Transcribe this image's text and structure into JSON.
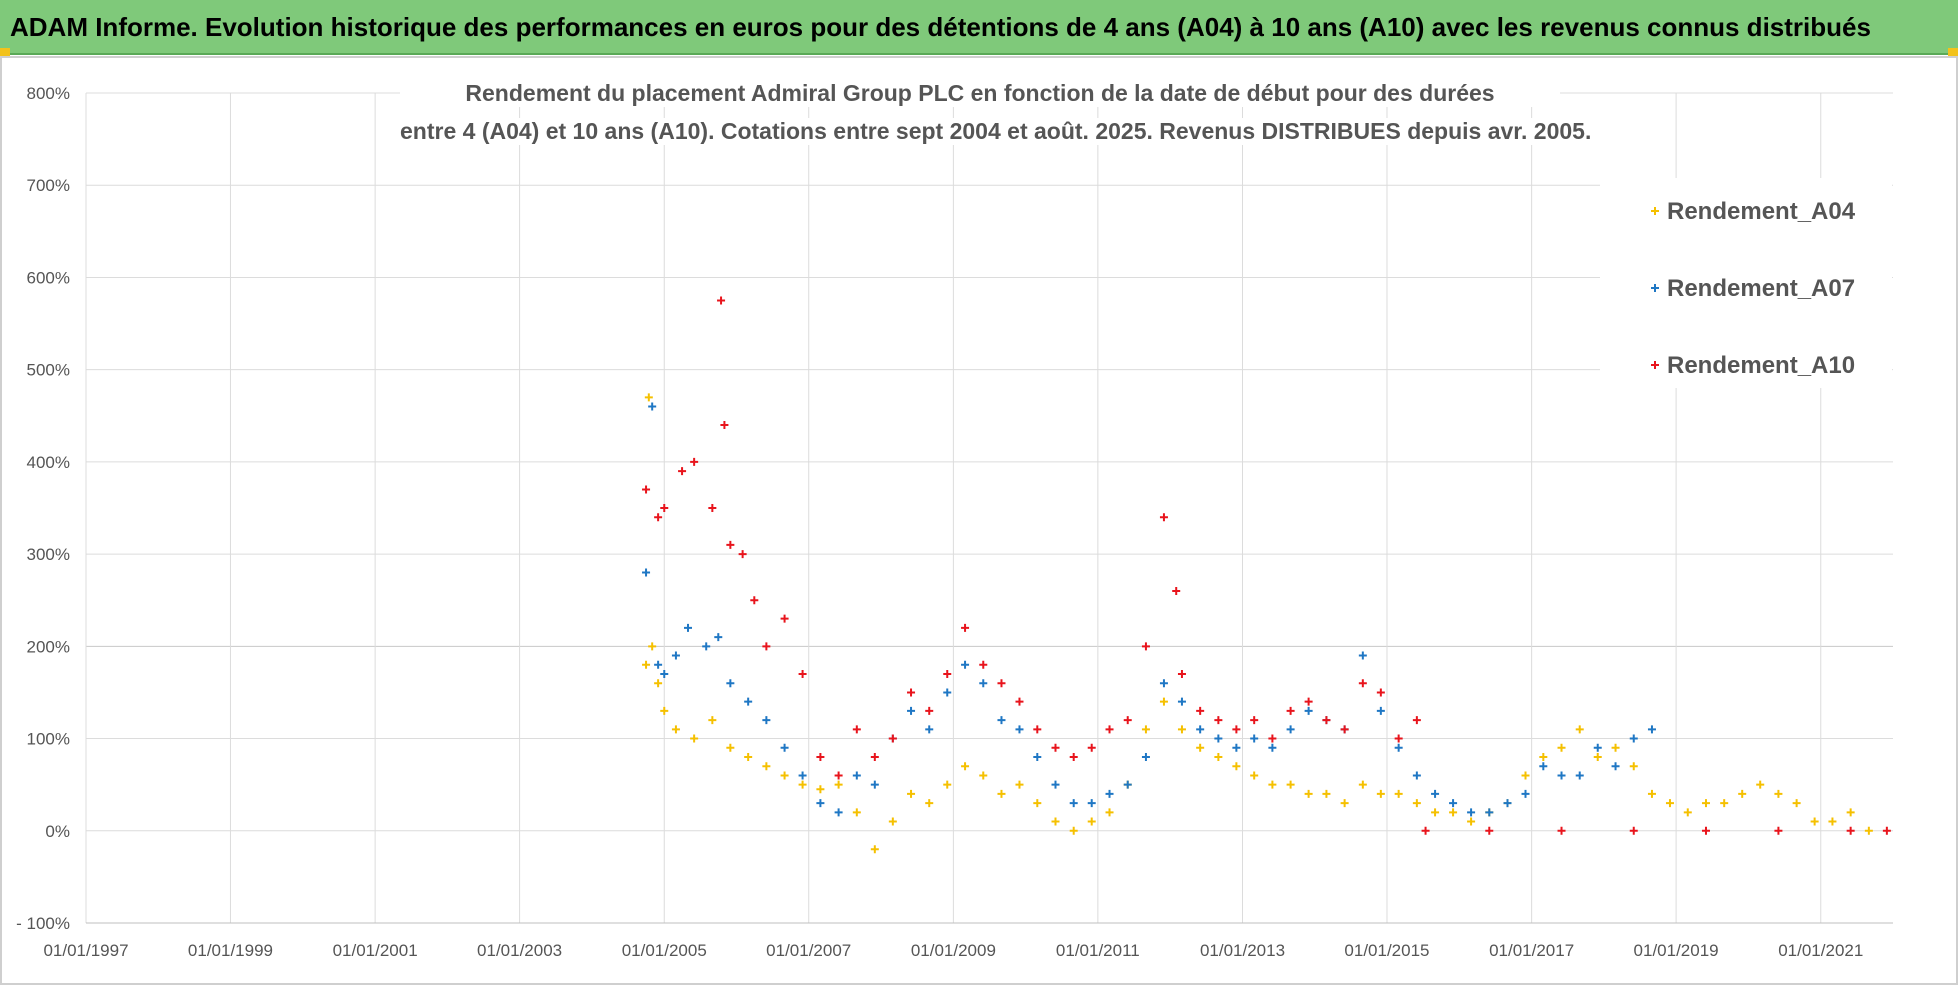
{
  "banner": {
    "title": "ADAM Informe. Evolution historique des performances en euros pour des détentions de 4 ans (A04) à 10 ans (A10) avec les revenus connus distribués",
    "color": "#7fc97a"
  },
  "chart_data": {
    "type": "scatter",
    "title_line1": "Rendement du placement Admiral Group PLC en fonction de la date de début pour des durées",
    "title_line2": "entre 4 (A04) et 10 ans (A10).  Cotations entre sept 2004 et août. 2025.  Revenus DISTRIBUES depuis avr. 2005.",
    "xlabel": "",
    "ylabel": "",
    "x_ticks": [
      "01/01/1997",
      "01/01/1999",
      "01/01/2001",
      "01/01/2003",
      "01/01/2005",
      "01/01/2007",
      "01/01/2009",
      "01/01/2011",
      "01/01/2013",
      "01/01/2015",
      "01/01/2017",
      "01/01/2019",
      "01/01/2021"
    ],
    "y_ticks": [
      "- 100%",
      "0%",
      "100%",
      "200%",
      "300%",
      "400%",
      "500%",
      "600%",
      "700%",
      "800%"
    ],
    "xlim": [
      "1997-01-01",
      "2022-01-01"
    ],
    "ylim": [
      -100,
      800
    ],
    "grid": true,
    "legend_position": "top-right",
    "marker": "+",
    "series": [
      {
        "name": "Rendement_A04",
        "color": "#f5c000",
        "points": [
          [
            "2004-10-01",
            180
          ],
          [
            "2004-10-15",
            470
          ],
          [
            "2004-11-01",
            200
          ],
          [
            "2004-12-01",
            160
          ],
          [
            "2005-01-01",
            130
          ],
          [
            "2005-03-01",
            110
          ],
          [
            "2005-06-01",
            100
          ],
          [
            "2005-09-01",
            120
          ],
          [
            "2005-12-01",
            90
          ],
          [
            "2006-03-01",
            80
          ],
          [
            "2006-06-01",
            70
          ],
          [
            "2006-09-01",
            60
          ],
          [
            "2006-12-01",
            50
          ],
          [
            "2007-03-01",
            45
          ],
          [
            "2007-06-01",
            50
          ],
          [
            "2007-09-01",
            20
          ],
          [
            "2007-12-01",
            -20
          ],
          [
            "2008-03-01",
            10
          ],
          [
            "2008-06-01",
            40
          ],
          [
            "2008-09-01",
            30
          ],
          [
            "2008-12-01",
            50
          ],
          [
            "2009-03-01",
            70
          ],
          [
            "2009-06-01",
            60
          ],
          [
            "2009-09-01",
            40
          ],
          [
            "2009-12-01",
            50
          ],
          [
            "2010-03-01",
            30
          ],
          [
            "2010-06-01",
            10
          ],
          [
            "2010-09-01",
            0
          ],
          [
            "2010-12-01",
            10
          ],
          [
            "2011-03-01",
            20
          ],
          [
            "2011-06-01",
            50
          ],
          [
            "2011-09-01",
            110
          ],
          [
            "2011-12-01",
            140
          ],
          [
            "2012-03-01",
            110
          ],
          [
            "2012-06-01",
            90
          ],
          [
            "2012-09-01",
            80
          ],
          [
            "2012-12-01",
            70
          ],
          [
            "2013-03-01",
            60
          ],
          [
            "2013-06-01",
            50
          ],
          [
            "2013-09-01",
            50
          ],
          [
            "2013-12-01",
            40
          ],
          [
            "2014-03-01",
            40
          ],
          [
            "2014-06-01",
            30
          ],
          [
            "2014-09-01",
            50
          ],
          [
            "2014-12-01",
            40
          ],
          [
            "2015-03-01",
            40
          ],
          [
            "2015-06-01",
            30
          ],
          [
            "2015-09-01",
            20
          ],
          [
            "2015-12-01",
            20
          ],
          [
            "2016-03-01",
            10
          ],
          [
            "2016-06-01",
            20
          ],
          [
            "2016-09-01",
            30
          ],
          [
            "2016-12-01",
            60
          ],
          [
            "2017-03-01",
            80
          ],
          [
            "2017-06-01",
            90
          ],
          [
            "2017-09-01",
            110
          ],
          [
            "2017-12-01",
            80
          ],
          [
            "2018-03-01",
            90
          ],
          [
            "2018-06-01",
            70
          ],
          [
            "2018-09-01",
            40
          ],
          [
            "2018-12-01",
            30
          ],
          [
            "2019-03-01",
            20
          ],
          [
            "2019-06-01",
            30
          ],
          [
            "2019-09-01",
            30
          ],
          [
            "2019-12-01",
            40
          ],
          [
            "2020-03-01",
            50
          ],
          [
            "2020-06-01",
            40
          ],
          [
            "2020-09-01",
            30
          ],
          [
            "2020-12-01",
            10
          ],
          [
            "2021-03-01",
            10
          ],
          [
            "2021-06-01",
            20
          ],
          [
            "2021-09-01",
            0
          ]
        ]
      },
      {
        "name": "Rendement_A07",
        "color": "#1f77c4",
        "points": [
          [
            "2004-10-01",
            280
          ],
          [
            "2004-11-01",
            460
          ],
          [
            "2004-12-01",
            180
          ],
          [
            "2005-01-01",
            170
          ],
          [
            "2005-03-01",
            190
          ],
          [
            "2005-05-01",
            220
          ],
          [
            "2005-08-01",
            200
          ],
          [
            "2005-10-01",
            210
          ],
          [
            "2005-12-01",
            160
          ],
          [
            "2006-03-01",
            140
          ],
          [
            "2006-06-01",
            120
          ],
          [
            "2006-09-01",
            90
          ],
          [
            "2006-12-01",
            60
          ],
          [
            "2007-03-01",
            30
          ],
          [
            "2007-06-01",
            20
          ],
          [
            "2007-09-01",
            60
          ],
          [
            "2007-12-01",
            50
          ],
          [
            "2008-03-01",
            100
          ],
          [
            "2008-06-01",
            130
          ],
          [
            "2008-09-01",
            110
          ],
          [
            "2008-12-01",
            150
          ],
          [
            "2009-03-01",
            180
          ],
          [
            "2009-06-01",
            160
          ],
          [
            "2009-09-01",
            120
          ],
          [
            "2009-12-01",
            110
          ],
          [
            "2010-03-01",
            80
          ],
          [
            "2010-06-01",
            50
          ],
          [
            "2010-09-01",
            30
          ],
          [
            "2010-12-01",
            30
          ],
          [
            "2011-03-01",
            40
          ],
          [
            "2011-06-01",
            50
          ],
          [
            "2011-09-01",
            80
          ],
          [
            "2011-12-01",
            160
          ],
          [
            "2012-03-01",
            140
          ],
          [
            "2012-06-01",
            110
          ],
          [
            "2012-09-01",
            100
          ],
          [
            "2012-12-01",
            90
          ],
          [
            "2013-03-01",
            100
          ],
          [
            "2013-06-01",
            90
          ],
          [
            "2013-09-01",
            110
          ],
          [
            "2013-12-01",
            130
          ],
          [
            "2014-03-01",
            120
          ],
          [
            "2014-06-01",
            110
          ],
          [
            "2014-09-01",
            190
          ],
          [
            "2014-12-01",
            130
          ],
          [
            "2015-03-01",
            90
          ],
          [
            "2015-06-01",
            60
          ],
          [
            "2015-09-01",
            40
          ],
          [
            "2015-12-01",
            30
          ],
          [
            "2016-03-01",
            20
          ],
          [
            "2016-06-01",
            20
          ],
          [
            "2016-09-01",
            30
          ],
          [
            "2016-12-01",
            40
          ],
          [
            "2017-03-01",
            70
          ],
          [
            "2017-06-01",
            60
          ],
          [
            "2017-09-01",
            60
          ],
          [
            "2017-12-01",
            90
          ],
          [
            "2018-03-01",
            70
          ],
          [
            "2018-06-01",
            100
          ],
          [
            "2018-09-01",
            110
          ]
        ]
      },
      {
        "name": "Rendement_A10",
        "color": "#e8141c",
        "points": [
          [
            "2004-10-01",
            370
          ],
          [
            "2004-12-01",
            340
          ],
          [
            "2005-01-01",
            350
          ],
          [
            "2005-04-01",
            390
          ],
          [
            "2005-06-01",
            400
          ],
          [
            "2005-09-01",
            350
          ],
          [
            "2005-10-15",
            575
          ],
          [
            "2005-11-01",
            440
          ],
          [
            "2005-12-01",
            310
          ],
          [
            "2006-02-01",
            300
          ],
          [
            "2006-04-01",
            250
          ],
          [
            "2006-06-01",
            200
          ],
          [
            "2006-09-01",
            230
          ],
          [
            "2006-12-01",
            170
          ],
          [
            "2007-03-01",
            80
          ],
          [
            "2007-06-01",
            60
          ],
          [
            "2007-09-01",
            110
          ],
          [
            "2007-12-01",
            80
          ],
          [
            "2008-03-01",
            100
          ],
          [
            "2008-06-01",
            150
          ],
          [
            "2008-09-01",
            130
          ],
          [
            "2008-12-01",
            170
          ],
          [
            "2009-03-01",
            220
          ],
          [
            "2009-06-01",
            180
          ],
          [
            "2009-09-01",
            160
          ],
          [
            "2009-12-01",
            140
          ],
          [
            "2010-03-01",
            110
          ],
          [
            "2010-06-01",
            90
          ],
          [
            "2010-09-01",
            80
          ],
          [
            "2010-12-01",
            90
          ],
          [
            "2011-03-01",
            110
          ],
          [
            "2011-06-01",
            120
          ],
          [
            "2011-09-01",
            200
          ],
          [
            "2011-12-01",
            340
          ],
          [
            "2012-02-01",
            260
          ],
          [
            "2012-03-01",
            170
          ],
          [
            "2012-06-01",
            130
          ],
          [
            "2012-09-01",
            120
          ],
          [
            "2012-12-01",
            110
          ],
          [
            "2013-03-01",
            120
          ],
          [
            "2013-06-01",
            100
          ],
          [
            "2013-09-01",
            130
          ],
          [
            "2013-12-01",
            140
          ],
          [
            "2014-03-01",
            120
          ],
          [
            "2014-06-01",
            110
          ],
          [
            "2014-09-01",
            160
          ],
          [
            "2014-12-01",
            150
          ],
          [
            "2015-03-01",
            100
          ],
          [
            "2015-06-01",
            120
          ],
          [
            "2015-07-15",
            0
          ],
          [
            "2016-06-01",
            0
          ],
          [
            "2017-06-01",
            0
          ],
          [
            "2018-06-01",
            0
          ],
          [
            "2019-06-01",
            0
          ],
          [
            "2020-06-01",
            0
          ],
          [
            "2021-06-01",
            0
          ],
          [
            "2021-12-01",
            0
          ]
        ]
      }
    ]
  }
}
